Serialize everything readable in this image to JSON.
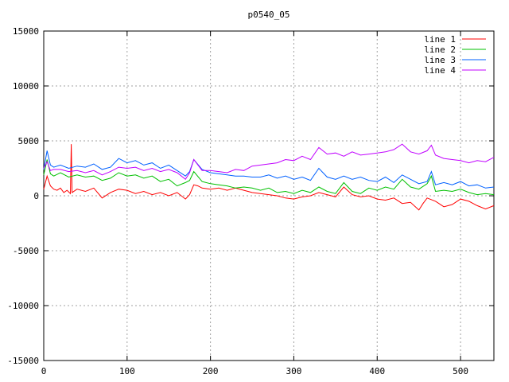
{
  "chart_data": {
    "type": "line",
    "title": "p0540_05",
    "xlabel": "",
    "ylabel": "",
    "xlim": [
      0,
      540
    ],
    "ylim": [
      -15000,
      15000
    ],
    "xticks": [
      0,
      100,
      200,
      300,
      400,
      500
    ],
    "yticks": [
      -15000,
      -10000,
      -5000,
      0,
      5000,
      10000,
      15000
    ],
    "grid": true,
    "legend_position": "top-right",
    "series": [
      {
        "name": "line 1",
        "color": "#ff0000",
        "points": [
          [
            0,
            600
          ],
          [
            4,
            1800
          ],
          [
            8,
            900
          ],
          [
            12,
            600
          ],
          [
            16,
            500
          ],
          [
            20,
            700
          ],
          [
            24,
            300
          ],
          [
            28,
            500
          ],
          [
            32,
            200
          ],
          [
            33,
            4700
          ],
          [
            34,
            300
          ],
          [
            40,
            600
          ],
          [
            50,
            400
          ],
          [
            60,
            700
          ],
          [
            70,
            -200
          ],
          [
            80,
            300
          ],
          [
            90,
            600
          ],
          [
            100,
            500
          ],
          [
            110,
            200
          ],
          [
            120,
            400
          ],
          [
            130,
            100
          ],
          [
            140,
            300
          ],
          [
            150,
            0
          ],
          [
            160,
            300
          ],
          [
            170,
            -300
          ],
          [
            175,
            100
          ],
          [
            180,
            1000
          ],
          [
            185,
            900
          ],
          [
            190,
            700
          ],
          [
            200,
            600
          ],
          [
            210,
            700
          ],
          [
            220,
            500
          ],
          [
            230,
            700
          ],
          [
            240,
            500
          ],
          [
            250,
            300
          ],
          [
            260,
            200
          ],
          [
            270,
            100
          ],
          [
            280,
            0
          ],
          [
            290,
            -200
          ],
          [
            300,
            -300
          ],
          [
            310,
            -100
          ],
          [
            320,
            0
          ],
          [
            330,
            300
          ],
          [
            340,
            100
          ],
          [
            350,
            -100
          ],
          [
            360,
            800
          ],
          [
            370,
            100
          ],
          [
            380,
            -100
          ],
          [
            390,
            0
          ],
          [
            400,
            -300
          ],
          [
            410,
            -400
          ],
          [
            420,
            -200
          ],
          [
            430,
            -700
          ],
          [
            440,
            -600
          ],
          [
            450,
            -1300
          ],
          [
            455,
            -700
          ],
          [
            460,
            -200
          ],
          [
            470,
            -500
          ],
          [
            480,
            -1000
          ],
          [
            490,
            -800
          ],
          [
            500,
            -300
          ],
          [
            510,
            -500
          ],
          [
            520,
            -900
          ],
          [
            530,
            -1200
          ],
          [
            540,
            -900
          ]
        ]
      },
      {
        "name": "line 2",
        "color": "#00c000",
        "points": [
          [
            0,
            1900
          ],
          [
            4,
            3300
          ],
          [
            8,
            2000
          ],
          [
            12,
            1800
          ],
          [
            20,
            2100
          ],
          [
            30,
            1700
          ],
          [
            40,
            1900
          ],
          [
            50,
            1700
          ],
          [
            60,
            1800
          ],
          [
            70,
            1400
          ],
          [
            80,
            1600
          ],
          [
            90,
            2100
          ],
          [
            100,
            1800
          ],
          [
            110,
            1900
          ],
          [
            120,
            1600
          ],
          [
            130,
            1800
          ],
          [
            140,
            1300
          ],
          [
            150,
            1500
          ],
          [
            160,
            900
          ],
          [
            170,
            1200
          ],
          [
            175,
            1400
          ],
          [
            180,
            2200
          ],
          [
            190,
            1300
          ],
          [
            200,
            1100
          ],
          [
            210,
            1000
          ],
          [
            220,
            900
          ],
          [
            230,
            700
          ],
          [
            240,
            800
          ],
          [
            250,
            700
          ],
          [
            260,
            500
          ],
          [
            270,
            700
          ],
          [
            280,
            300
          ],
          [
            290,
            400
          ],
          [
            300,
            200
          ],
          [
            310,
            500
          ],
          [
            320,
            300
          ],
          [
            330,
            800
          ],
          [
            340,
            400
          ],
          [
            350,
            200
          ],
          [
            360,
            1200
          ],
          [
            370,
            400
          ],
          [
            380,
            200
          ],
          [
            390,
            700
          ],
          [
            400,
            500
          ],
          [
            410,
            800
          ],
          [
            420,
            600
          ],
          [
            430,
            1500
          ],
          [
            440,
            800
          ],
          [
            450,
            600
          ],
          [
            460,
            1100
          ],
          [
            465,
            1800
          ],
          [
            470,
            400
          ],
          [
            480,
            500
          ],
          [
            490,
            400
          ],
          [
            500,
            600
          ],
          [
            510,
            300
          ],
          [
            520,
            100
          ],
          [
            530,
            200
          ],
          [
            540,
            100
          ]
        ]
      },
      {
        "name": "line 3",
        "color": "#0060ff",
        "points": [
          [
            0,
            2400
          ],
          [
            4,
            4100
          ],
          [
            8,
            2800
          ],
          [
            12,
            2600
          ],
          [
            20,
            2800
          ],
          [
            30,
            2500
          ],
          [
            40,
            2700
          ],
          [
            50,
            2600
          ],
          [
            60,
            2900
          ],
          [
            70,
            2400
          ],
          [
            80,
            2600
          ],
          [
            90,
            3400
          ],
          [
            100,
            3000
          ],
          [
            110,
            3200
          ],
          [
            120,
            2800
          ],
          [
            130,
            3000
          ],
          [
            140,
            2500
          ],
          [
            150,
            2800
          ],
          [
            160,
            2300
          ],
          [
            170,
            1800
          ],
          [
            175,
            2200
          ],
          [
            180,
            3300
          ],
          [
            190,
            2400
          ],
          [
            200,
            2100
          ],
          [
            210,
            2000
          ],
          [
            220,
            1900
          ],
          [
            230,
            1800
          ],
          [
            240,
            1800
          ],
          [
            250,
            1700
          ],
          [
            260,
            1700
          ],
          [
            270,
            1900
          ],
          [
            280,
            1600
          ],
          [
            290,
            1800
          ],
          [
            300,
            1500
          ],
          [
            310,
            1700
          ],
          [
            320,
            1400
          ],
          [
            330,
            2500
          ],
          [
            340,
            1700
          ],
          [
            350,
            1500
          ],
          [
            360,
            1800
          ],
          [
            370,
            1500
          ],
          [
            380,
            1700
          ],
          [
            390,
            1400
          ],
          [
            400,
            1300
          ],
          [
            410,
            1700
          ],
          [
            420,
            1200
          ],
          [
            430,
            1900
          ],
          [
            440,
            1500
          ],
          [
            450,
            1100
          ],
          [
            460,
            1300
          ],
          [
            465,
            2200
          ],
          [
            470,
            1000
          ],
          [
            480,
            1200
          ],
          [
            490,
            1000
          ],
          [
            500,
            1300
          ],
          [
            510,
            900
          ],
          [
            520,
            1000
          ],
          [
            530,
            700
          ],
          [
            540,
            800
          ]
        ]
      },
      {
        "name": "line 4",
        "color": "#c000ff",
        "points": [
          [
            0,
            2500
          ],
          [
            4,
            3100
          ],
          [
            8,
            2300
          ],
          [
            12,
            2400
          ],
          [
            20,
            2400
          ],
          [
            30,
            2200
          ],
          [
            40,
            2300
          ],
          [
            50,
            2100
          ],
          [
            60,
            2300
          ],
          [
            70,
            1900
          ],
          [
            80,
            2200
          ],
          [
            90,
            2600
          ],
          [
            100,
            2500
          ],
          [
            110,
            2600
          ],
          [
            120,
            2300
          ],
          [
            130,
            2500
          ],
          [
            140,
            2200
          ],
          [
            150,
            2400
          ],
          [
            160,
            2100
          ],
          [
            170,
            1500
          ],
          [
            175,
            2100
          ],
          [
            180,
            3300
          ],
          [
            190,
            2300
          ],
          [
            200,
            2300
          ],
          [
            210,
            2200
          ],
          [
            220,
            2100
          ],
          [
            230,
            2400
          ],
          [
            240,
            2300
          ],
          [
            250,
            2700
          ],
          [
            260,
            2800
          ],
          [
            270,
            2900
          ],
          [
            280,
            3000
          ],
          [
            290,
            3300
          ],
          [
            300,
            3200
          ],
          [
            310,
            3600
          ],
          [
            320,
            3300
          ],
          [
            330,
            4400
          ],
          [
            340,
            3800
          ],
          [
            350,
            3900
          ],
          [
            360,
            3600
          ],
          [
            370,
            4000
          ],
          [
            380,
            3700
          ],
          [
            390,
            3800
          ],
          [
            400,
            3900
          ],
          [
            410,
            4000
          ],
          [
            420,
            4200
          ],
          [
            430,
            4700
          ],
          [
            440,
            4000
          ],
          [
            450,
            3800
          ],
          [
            460,
            4100
          ],
          [
            465,
            4600
          ],
          [
            470,
            3700
          ],
          [
            480,
            3400
          ],
          [
            490,
            3300
          ],
          [
            500,
            3200
          ],
          [
            510,
            3000
          ],
          [
            520,
            3200
          ],
          [
            530,
            3100
          ],
          [
            540,
            3500
          ]
        ]
      }
    ]
  }
}
